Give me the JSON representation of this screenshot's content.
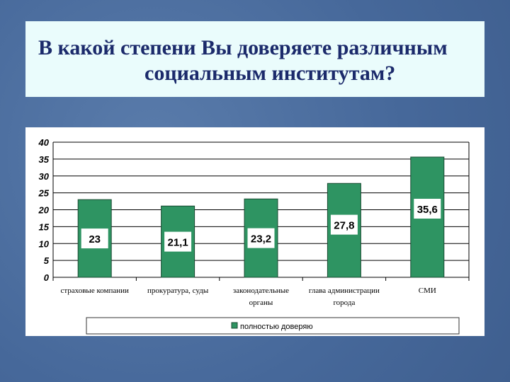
{
  "title": {
    "line1": "В какой степени Вы доверяете различным",
    "line2": "социальным институтам?"
  },
  "chart_data": {
    "type": "bar",
    "categories": [
      [
        "страховые компании"
      ],
      [
        "прокуратура, суды"
      ],
      [
        "законодательные",
        "органы"
      ],
      [
        "глава администрации",
        "города"
      ],
      [
        "СМИ"
      ]
    ],
    "series": [
      {
        "name": "полностью доверяю",
        "values": [
          23,
          21.1,
          23.2,
          27.8,
          35.6
        ],
        "labels": [
          "23",
          "21,1",
          "23,2",
          "27,8",
          "35,6"
        ],
        "color": "#2e9462"
      }
    ],
    "ylim": [
      0,
      40
    ],
    "yticks": [
      0,
      5,
      10,
      15,
      20,
      25,
      30,
      35,
      40
    ],
    "grid": true,
    "legend": "bottom"
  }
}
